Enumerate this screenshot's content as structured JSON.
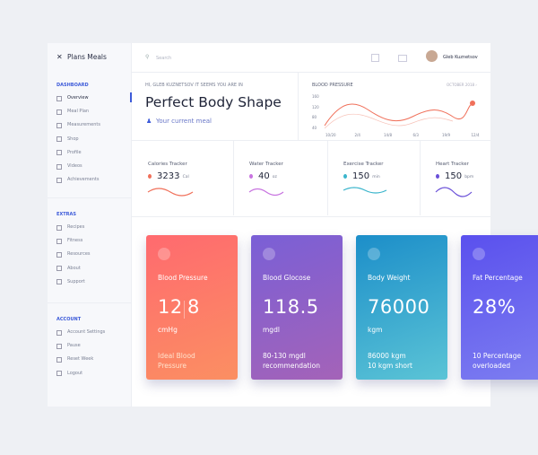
{
  "sidebar": {
    "logo": "Plans Meals",
    "sections": [
      {
        "title": "DASHBOARD",
        "items": [
          "Overview",
          "Meal Plan",
          "Measurements",
          "Shop",
          "Profile",
          "Videos",
          "Achievements"
        ]
      },
      {
        "title": "EXTRAS",
        "items": [
          "Recipes",
          "Fitness",
          "Resources",
          "About",
          "Support"
        ]
      },
      {
        "title": "ACCOUNT",
        "items": [
          "Account Settings",
          "Pause",
          "Reset Week",
          "Logout"
        ]
      }
    ]
  },
  "topbar": {
    "search": "Search",
    "user": "Gleb Kuznetsov"
  },
  "greeting": {
    "line": "HI, GLEB KUZNETSOV IT SEEMS YOU ARE IN",
    "title": "Perfect Body Shape",
    "meal": "Your current meal"
  },
  "blood_pressure": {
    "title": "BLOOD PRESSURE",
    "period": "OCTOBER 2018 ›",
    "yticks": [
      "160",
      "120",
      "80",
      "40"
    ],
    "xticks": [
      "10/20",
      "2/4",
      "14/8",
      "6/3",
      "19/9",
      "12/4"
    ]
  },
  "trackers": [
    {
      "label": "Calories Tracker",
      "value": "3233",
      "unit": "Cal"
    },
    {
      "label": "Water Tracker",
      "value": "40",
      "unit": "oz"
    },
    {
      "label": "Exercise Tracker",
      "value": "150",
      "unit": "min"
    },
    {
      "label": "Heart Tracker",
      "value": "150",
      "unit": "bpm"
    }
  ],
  "cards": [
    {
      "title": "Blood Pressure",
      "value": "12",
      "value2": "8",
      "unit": "cmHg",
      "note": [
        "Ideal Blood",
        "Pressure"
      ]
    },
    {
      "title": "Blood Glocose",
      "value": "118.5",
      "unit": "mgdl",
      "note": [
        "80-130 mgdl",
        "recommendation"
      ]
    },
    {
      "title": "Body Weight",
      "value": "76000",
      "unit": "kgm",
      "note": [
        "86000 kgm",
        "10 kgm short"
      ]
    },
    {
      "title": "Fat Percentage",
      "value": "28%",
      "note": [
        "10 Percentage",
        "overloaded"
      ]
    }
  ]
}
